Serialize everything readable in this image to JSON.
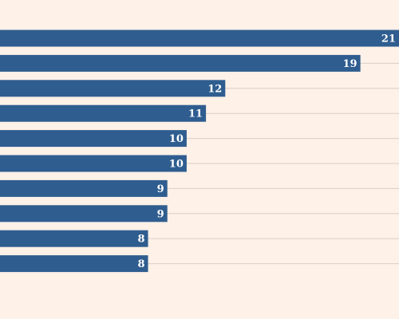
{
  "chart_data": {
    "type": "hbar",
    "categories": [
      null,
      null,
      null,
      null,
      null,
      null,
      null,
      null,
      null,
      null
    ],
    "values": [
      21,
      19,
      12,
      11,
      10,
      10,
      9,
      9,
      8,
      8
    ],
    "color": "#2f5d8f",
    "grid": true
  }
}
